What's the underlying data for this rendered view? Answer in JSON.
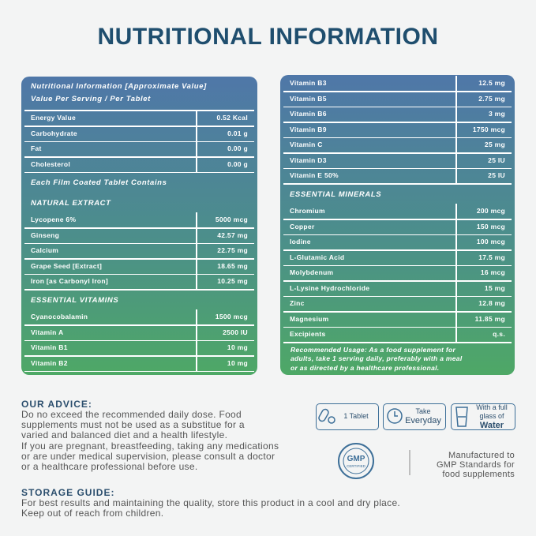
{
  "title": "NUTRITIONAL INFORMATION",
  "left_panel": {
    "header": [
      "Nutritional Information [Approximate Value]",
      "Value Per Serving / Per Tablet"
    ],
    "items": [
      {
        "name": "Energy Value",
        "amount": "0.52 Kcal"
      },
      {
        "name": "Carbohydrate",
        "amount": "0.01 g"
      },
      {
        "name": "Fat",
        "amount": "0.00 g"
      },
      {
        "name": "Cholesterol",
        "amount": "0.00 g"
      },
      {
        "heading": "Each Film Coated Tablet Contains"
      },
      {
        "heading": "NATURAL EXTRACT"
      },
      {
        "name": "Lycopene 6%",
        "amount": "5000 mcg"
      },
      {
        "name": "Ginseng",
        "amount": "42.57 mg"
      },
      {
        "name": "Calcium",
        "amount": "22.75 mg"
      },
      {
        "name": "Grape Seed [Extract]",
        "amount": "18.65 mg"
      },
      {
        "name": "Iron [as Carbonyl Iron]",
        "amount": "10.25 mg"
      },
      {
        "heading": "ESSENTIAL VITAMINS"
      },
      {
        "name": "Cyanocobalamin",
        "amount": "1500 mcg"
      },
      {
        "name": "Vitamin A",
        "amount": "2500 IU"
      },
      {
        "name": "Vitamin B1",
        "amount": "10 mg"
      },
      {
        "name": "Vitamin B2",
        "amount": "10 mg"
      }
    ]
  },
  "right_panel": {
    "items": [
      {
        "name": "Vitamin B3",
        "amount": "12.5 mg"
      },
      {
        "name": "Vitamin B5",
        "amount": "2.75 mg"
      },
      {
        "name": "Vitamin B6",
        "amount": "3 mg"
      },
      {
        "name": "Vitamin B9",
        "amount": "1750 mcg"
      },
      {
        "name": "Vitamin C",
        "amount": "25 mg"
      },
      {
        "name": "Vitamin D3",
        "amount": "25 IU"
      },
      {
        "name": "Vitamin E 50%",
        "amount": "25 IU"
      },
      {
        "heading": "ESSENTIAL MINERALS"
      },
      {
        "name": "Chromium",
        "amount": "200 mcg"
      },
      {
        "name": "Copper",
        "amount": "150 mcg"
      },
      {
        "name": "Iodine",
        "amount": "100 mcg"
      },
      {
        "name": "L-Glutamic Acid",
        "amount": "17.5 mg"
      },
      {
        "name": "Molybdenum",
        "amount": "16 mcg"
      },
      {
        "name": "L-Lysine Hydrochloride",
        "amount": "15 mg"
      },
      {
        "name": "Zinc",
        "amount": "12.8 mg"
      },
      {
        "name": "Magnesium",
        "amount": "11.85 mg"
      },
      {
        "name": "Excipients",
        "amount": "q.s."
      }
    ],
    "usage": [
      "Recommended Usage: As a food supplement for",
      "adults, take 1 serving daily, preferably with a meal",
      "or as directed by a healthcare professional."
    ]
  },
  "advice": {
    "title": "OUR ADVICE:",
    "lines": [
      "Do no exceed the recommended daily dose. Food",
      "supplements must not be used as a substitue for a",
      "varied and balanced diet and a health lifestyle.",
      "If you are pregnant, breastfeeding, taking any medications",
      "or are under medical supervision, please consult a doctor",
      "or a healthcare professional before use."
    ]
  },
  "badges": [
    {
      "lines": [
        "1 Tablet"
      ]
    },
    {
      "lines": [
        "Take",
        "Everyday"
      ]
    },
    {
      "lines": [
        "With a full",
        "glass of",
        "Water"
      ]
    }
  ],
  "gmp": {
    "badge": "GMP",
    "sub": "CERTIFIED",
    "text": [
      "Manufactured to",
      "GMP Standards for",
      "food supplements"
    ]
  },
  "storage": {
    "title": "STORAGE GUIDE:",
    "lines": [
      "For best results and maintaining the quality, store this product in a cool and dry place.",
      "Keep out of reach from children."
    ]
  }
}
